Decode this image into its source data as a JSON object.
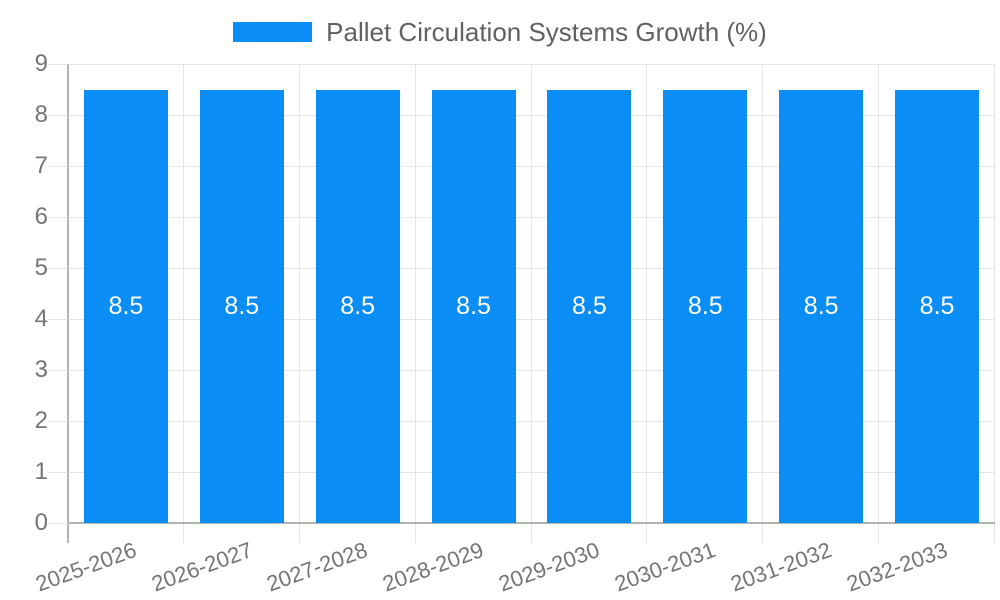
{
  "chart_data": {
    "type": "bar",
    "legend": "Pallet Circulation Systems Growth (%)",
    "legend_position": "top-center",
    "categories": [
      "2025-2026",
      "2026-2027",
      "2027-2028",
      "2028-2029",
      "2029-2030",
      "2030-2031",
      "2031-2032",
      "2032-2033"
    ],
    "values": [
      8.5,
      8.5,
      8.5,
      8.5,
      8.5,
      8.5,
      8.5,
      8.5
    ],
    "value_labels": [
      "8.5",
      "8.5",
      "8.5",
      "8.5",
      "8.5",
      "8.5",
      "8.5",
      "8.5"
    ],
    "xlabel": "",
    "ylabel": "",
    "ylim": [
      0,
      9
    ],
    "y_ticks": [
      0,
      1,
      2,
      3,
      4,
      5,
      6,
      7,
      8,
      9
    ],
    "grid": true,
    "x_tick_rotation_deg": -20,
    "colors": {
      "bar": "#0a8df4",
      "gridline": "#e6e6e6",
      "axis_line": "#b3b3b3",
      "tick_label": "#757575",
      "legend_text": "#616161",
      "value_label": "#ffffff",
      "background": "#ffffff"
    }
  }
}
